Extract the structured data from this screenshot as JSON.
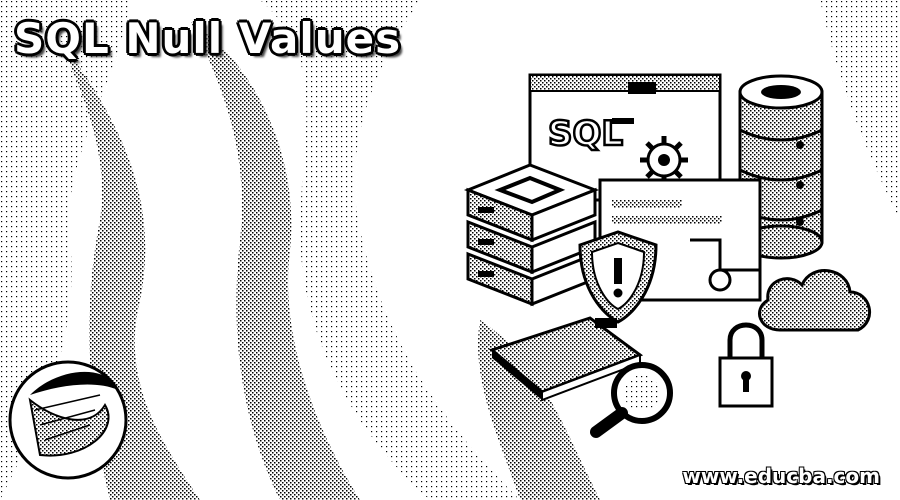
{
  "title": "SQL Null Values",
  "watermark": "www.educba.com",
  "illustration": {
    "panel_text": "SQL",
    "icons": [
      "database-stack-icon",
      "server-stack-icon",
      "shield-warning-icon",
      "gear-icon",
      "cloud-icon",
      "padlock-icon",
      "magnifier-icon",
      "tablet-icon",
      "sql-server-logo-icon"
    ]
  },
  "colors": {
    "ink": "#000000",
    "paper": "#ffffff",
    "stipple": "#9a9a9a"
  }
}
